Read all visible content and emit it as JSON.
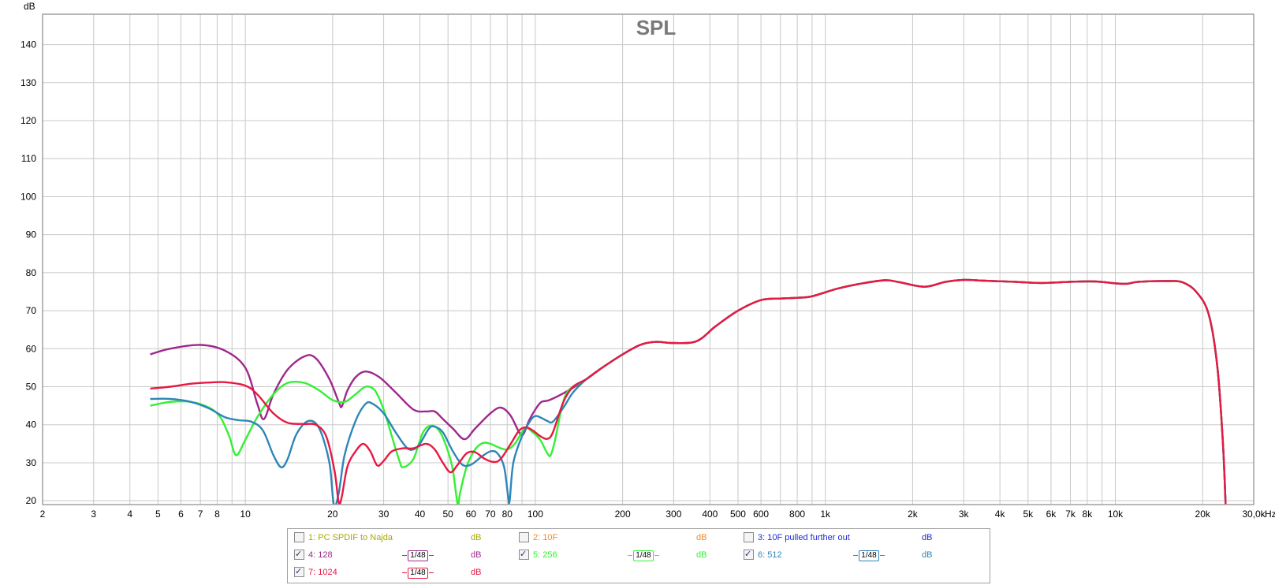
{
  "chart_data": {
    "type": "line",
    "title": "SPL",
    "ylabel": "dB",
    "xunit": "Hz",
    "xscale": "log",
    "xlim": [
      2,
      30000
    ],
    "ylim": [
      19,
      148
    ],
    "grid": true,
    "y_ticks": [
      20,
      30,
      40,
      50,
      60,
      70,
      80,
      90,
      100,
      110,
      120,
      130,
      140
    ],
    "x_ticks": [
      {
        "v": 2,
        "label": "2"
      },
      {
        "v": 3,
        "label": "3"
      },
      {
        "v": 4,
        "label": "4"
      },
      {
        "v": 5,
        "label": "5"
      },
      {
        "v": 6,
        "label": "6"
      },
      {
        "v": 7,
        "label": "7"
      },
      {
        "v": 8,
        "label": "8"
      },
      {
        "v": 10,
        "label": "10"
      },
      {
        "v": 20,
        "label": "20"
      },
      {
        "v": 30,
        "label": "30"
      },
      {
        "v": 40,
        "label": "40"
      },
      {
        "v": 50,
        "label": "50"
      },
      {
        "v": 60,
        "label": "60"
      },
      {
        "v": 70,
        "label": "70"
      },
      {
        "v": 80,
        "label": "80"
      },
      {
        "v": 100,
        "label": "100"
      },
      {
        "v": 200,
        "label": "200"
      },
      {
        "v": 300,
        "label": "300"
      },
      {
        "v": 400,
        "label": "400"
      },
      {
        "v": 500,
        "label": "500"
      },
      {
        "v": 600,
        "label": "600"
      },
      {
        "v": 800,
        "label": "800"
      },
      {
        "v": 1000,
        "label": "1k"
      },
      {
        "v": 2000,
        "label": "2k"
      },
      {
        "v": 3000,
        "label": "3k"
      },
      {
        "v": 4000,
        "label": "4k"
      },
      {
        "v": 5000,
        "label": "5k"
      },
      {
        "v": 6000,
        "label": "6k"
      },
      {
        "v": 7000,
        "label": "7k"
      },
      {
        "v": 8000,
        "label": "8k"
      },
      {
        "v": 10000,
        "label": "10k"
      },
      {
        "v": 20000,
        "label": "20k"
      },
      {
        "v": 30000,
        "label": "30,0k"
      }
    ],
    "minor_grid_x": [
      9,
      90,
      700,
      900,
      9000
    ],
    "shared_tail": [
      [
        100,
        46
      ],
      [
        110,
        46.5
      ],
      [
        130,
        49
      ],
      [
        150,
        52
      ],
      [
        170,
        55
      ],
      [
        200,
        58.5
      ],
      [
        230,
        61
      ],
      [
        260,
        61.8
      ],
      [
        300,
        61.5
      ],
      [
        360,
        62
      ],
      [
        420,
        66
      ],
      [
        500,
        70
      ],
      [
        600,
        72.8
      ],
      [
        700,
        73.2
      ],
      [
        800,
        73.4
      ],
      [
        900,
        73.8
      ],
      [
        1100,
        75.8
      ],
      [
        1300,
        77
      ],
      [
        1600,
        78
      ],
      [
        1800,
        77.5
      ],
      [
        2200,
        76.3
      ],
      [
        2600,
        77.6
      ],
      [
        3000,
        78.1
      ],
      [
        3500,
        77.9
      ],
      [
        4500,
        77.6
      ],
      [
        5500,
        77.3
      ],
      [
        7000,
        77.6
      ],
      [
        8500,
        77.7
      ],
      [
        10000,
        77.2
      ],
      [
        11000,
        77.1
      ],
      [
        12000,
        77.6
      ],
      [
        15000,
        77.8
      ],
      [
        17000,
        77.5
      ],
      [
        19000,
        75
      ],
      [
        21000,
        69
      ],
      [
        22500,
        55
      ],
      [
        23500,
        35
      ],
      [
        24000,
        19
      ]
    ],
    "series": [
      {
        "name": "4: 128",
        "color": "#a0288c",
        "visible": true,
        "points": [
          [
            4.7,
            58.5
          ],
          [
            5.5,
            60
          ],
          [
            7,
            61
          ],
          [
            8.5,
            59.5
          ],
          [
            10,
            55
          ],
          [
            11,
            45.5
          ],
          [
            11.6,
            41.5
          ],
          [
            12.5,
            48
          ],
          [
            14,
            54.5
          ],
          [
            16,
            58
          ],
          [
            17.5,
            57.5
          ],
          [
            19.5,
            52
          ],
          [
            21,
            46
          ],
          [
            21.5,
            44.8
          ],
          [
            22.5,
            49
          ],
          [
            24,
            52.5
          ],
          [
            26,
            54
          ],
          [
            29,
            52.5
          ],
          [
            33,
            48.5
          ],
          [
            38,
            44
          ],
          [
            42,
            43.5
          ],
          [
            45,
            43.5
          ],
          [
            48,
            41.5
          ],
          [
            52,
            39
          ],
          [
            57,
            36.2
          ],
          [
            62,
            39
          ],
          [
            70,
            43
          ],
          [
            76,
            44.5
          ],
          [
            82,
            42.5
          ],
          [
            88,
            38
          ],
          [
            91,
            37.5
          ],
          [
            95,
            41
          ],
          [
            100,
            44
          ],
          [
            105,
            46
          ],
          [
            112,
            46.5
          ]
        ],
        "tail": true
      },
      {
        "name": "5: 256",
        "color": "#34f034",
        "visible": true,
        "points": [
          [
            4.7,
            45
          ],
          [
            5.5,
            46
          ],
          [
            6.5,
            46
          ],
          [
            7.5,
            44.5
          ],
          [
            8.2,
            42
          ],
          [
            8.8,
            37
          ],
          [
            9.3,
            32
          ],
          [
            10,
            36
          ],
          [
            11,
            42
          ],
          [
            12.5,
            48
          ],
          [
            14,
            51
          ],
          [
            16,
            51
          ],
          [
            18,
            49
          ],
          [
            20,
            46.5
          ],
          [
            22,
            46
          ],
          [
            24,
            48
          ],
          [
            26,
            50
          ],
          [
            28,
            49
          ],
          [
            30,
            44
          ],
          [
            32,
            37
          ],
          [
            34,
            30.5
          ],
          [
            35,
            28.8
          ],
          [
            38,
            31
          ],
          [
            41,
            38
          ],
          [
            44,
            39.8
          ],
          [
            47,
            38
          ],
          [
            50,
            33
          ],
          [
            52,
            28
          ],
          [
            54,
            19
          ],
          [
            55,
            22
          ],
          [
            58,
            29
          ],
          [
            62,
            33.5
          ],
          [
            66,
            35.2
          ],
          [
            70,
            35
          ],
          [
            75,
            34
          ],
          [
            80,
            33.5
          ],
          [
            85,
            35
          ],
          [
            92,
            39
          ],
          [
            98,
            38
          ],
          [
            104,
            36
          ],
          [
            110,
            32.5
          ],
          [
            113,
            32
          ],
          [
            117,
            36
          ],
          [
            123,
            44
          ],
          [
            130,
            49
          ]
        ],
        "tail": true
      },
      {
        "name": "6: 512",
        "color": "#2e86b8",
        "visible": true,
        "points": [
          [
            4.7,
            46.8
          ],
          [
            5.5,
            46.8
          ],
          [
            6.5,
            46
          ],
          [
            7.5,
            44.3
          ],
          [
            8.5,
            42
          ],
          [
            9.5,
            41.2
          ],
          [
            10.5,
            40.8
          ],
          [
            11.5,
            38.5
          ],
          [
            12.5,
            32
          ],
          [
            13.3,
            28.8
          ],
          [
            14,
            31
          ],
          [
            15,
            37.5
          ],
          [
            16.5,
            41
          ],
          [
            18,
            39
          ],
          [
            19.5,
            30
          ],
          [
            20.2,
            19
          ],
          [
            21,
            22
          ],
          [
            22,
            32
          ],
          [
            24,
            41
          ],
          [
            26,
            45.5
          ],
          [
            27.5,
            45.5
          ],
          [
            30,
            43
          ],
          [
            33,
            38
          ],
          [
            36,
            34
          ],
          [
            38,
            33.5
          ],
          [
            40,
            35
          ],
          [
            43,
            39
          ],
          [
            45,
            39.5
          ],
          [
            48,
            38
          ],
          [
            52,
            33
          ],
          [
            56,
            29.5
          ],
          [
            60,
            29.5
          ],
          [
            65,
            31.5
          ],
          [
            70,
            33
          ],
          [
            74,
            32.5
          ],
          [
            78,
            29
          ],
          [
            80.5,
            21.5
          ],
          [
            81.5,
            19.8
          ],
          [
            84,
            30
          ],
          [
            90,
            37
          ],
          [
            96,
            41
          ],
          [
            100,
            42.3
          ],
          [
            105,
            41.8
          ],
          [
            110,
            41
          ],
          [
            115,
            40.8
          ],
          [
            125,
            44.5
          ],
          [
            135,
            48.5
          ]
        ],
        "tail": true
      },
      {
        "name": "7: 1024",
        "color": "#e81844",
        "visible": true,
        "points": [
          [
            4.7,
            49.5
          ],
          [
            5.5,
            50
          ],
          [
            6.5,
            50.8
          ],
          [
            7.5,
            51.1
          ],
          [
            8.5,
            51.2
          ],
          [
            10,
            50.3
          ],
          [
            11,
            48
          ],
          [
            12.5,
            43
          ],
          [
            14,
            40.5
          ],
          [
            16,
            40.2
          ],
          [
            17.5,
            40
          ],
          [
            19,
            37
          ],
          [
            20.3,
            28
          ],
          [
            21,
            19.5
          ],
          [
            21.5,
            21
          ],
          [
            22.5,
            29
          ],
          [
            24,
            33
          ],
          [
            25.5,
            35
          ],
          [
            27,
            33
          ],
          [
            28.5,
            29.3
          ],
          [
            30,
            30.5
          ],
          [
            32,
            33
          ],
          [
            35,
            33.8
          ],
          [
            38,
            33.8
          ],
          [
            42,
            35
          ],
          [
            45,
            33.5
          ],
          [
            48,
            30
          ],
          [
            51,
            27.5
          ],
          [
            54,
            29.5
          ],
          [
            58,
            32.5
          ],
          [
            62,
            32.8
          ],
          [
            67,
            31
          ],
          [
            72,
            30.2
          ],
          [
            76,
            31
          ],
          [
            82,
            34.8
          ],
          [
            88,
            38.5
          ],
          [
            93,
            39.3
          ],
          [
            98,
            38.5
          ],
          [
            104,
            37
          ],
          [
            110,
            36.3
          ],
          [
            115,
            38
          ],
          [
            125,
            46
          ],
          [
            135,
            50
          ]
        ],
        "tail": true
      }
    ],
    "legend": [
      {
        "label": "1: PC SPDIF to Najda",
        "checked": false,
        "color": "#a8a800",
        "unit": "dB",
        "smoothing": ""
      },
      {
        "label": "2: 10F",
        "checked": false,
        "color": "#f08a28",
        "unit": "dB",
        "smoothing": ""
      },
      {
        "label": "3: 10F pulled further out",
        "checked": false,
        "color": "#1e2ad0",
        "unit": "dB",
        "smoothing": ""
      },
      {
        "label": "4: 128",
        "checked": true,
        "color": "#a0288c",
        "unit": "dB",
        "smoothing": "1/48"
      },
      {
        "label": "5: 256",
        "checked": true,
        "color": "#34f034",
        "unit": "dB",
        "smoothing": "1/48"
      },
      {
        "label": "6: 512",
        "checked": true,
        "color": "#2e86b8",
        "unit": "dB",
        "smoothing": "1/48"
      },
      {
        "label": "7: 1024",
        "checked": true,
        "color": "#e81844",
        "unit": "dB",
        "smoothing": "1/48"
      }
    ]
  },
  "colors": {
    "grid": "#c8c8c8",
    "frame": "#a0a0a0",
    "title": "#7a7a7a"
  }
}
